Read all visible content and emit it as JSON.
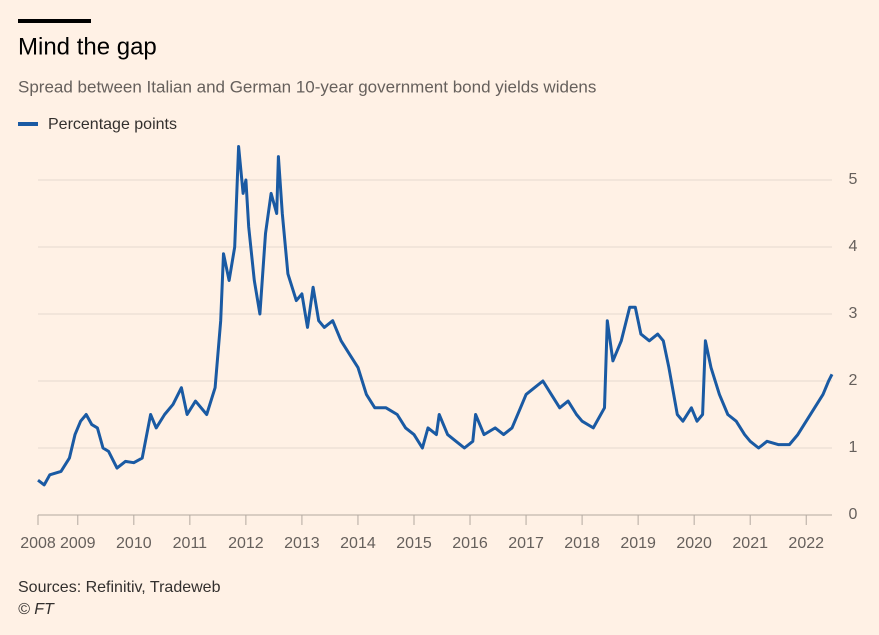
{
  "chart_data": {
    "type": "line",
    "title": "Mind the gap",
    "subtitle": "Spread between Italian and German 10-year government bond yields widens",
    "source": "Sources: Refinitiv, Tradeweb",
    "credit": "© FT",
    "x": [
      2008.29,
      2008.4,
      2008.5,
      2008.7,
      2008.85,
      2008.95,
      2009.05,
      2009.15,
      2009.25,
      2009.35,
      2009.45,
      2009.55,
      2009.7,
      2009.85,
      2010.0,
      2010.15,
      2010.3,
      2010.4,
      2010.55,
      2010.7,
      2010.85,
      2010.95,
      2011.1,
      2011.3,
      2011.45,
      2011.55,
      2011.6,
      2011.7,
      2011.8,
      2011.87,
      2011.95,
      2012.0,
      2012.05,
      2012.15,
      2012.25,
      2012.35,
      2012.45,
      2012.55,
      2012.58,
      2012.65,
      2012.75,
      2012.9,
      2013.0,
      2013.1,
      2013.2,
      2013.3,
      2013.4,
      2013.55,
      2013.7,
      2013.85,
      2014.0,
      2014.15,
      2014.3,
      2014.5,
      2014.7,
      2014.85,
      2015.0,
      2015.15,
      2015.25,
      2015.4,
      2015.45,
      2015.6,
      2015.75,
      2015.9,
      2016.05,
      2016.1,
      2016.25,
      2016.45,
      2016.6,
      2016.75,
      2016.9,
      2017.0,
      2017.15,
      2017.3,
      2017.45,
      2017.6,
      2017.75,
      2017.9,
      2018.0,
      2018.2,
      2018.4,
      2018.45,
      2018.55,
      2018.7,
      2018.85,
      2018.95,
      2019.05,
      2019.2,
      2019.35,
      2019.45,
      2019.55,
      2019.7,
      2019.8,
      2019.95,
      2020.05,
      2020.15,
      2020.2,
      2020.3,
      2020.45,
      2020.6,
      2020.75,
      2020.9,
      2021.0,
      2021.15,
      2021.3,
      2021.5,
      2021.7,
      2021.85,
      2022.0,
      2022.15,
      2022.3,
      2022.4,
      2022.46
    ],
    "series": [
      {
        "name": "Percentage points",
        "color": "#1a5aa3",
        "values": [
          0.52,
          0.45,
          0.6,
          0.65,
          0.85,
          1.2,
          1.4,
          1.5,
          1.35,
          1.3,
          1.0,
          0.95,
          0.7,
          0.8,
          0.78,
          0.85,
          1.5,
          1.3,
          1.5,
          1.65,
          1.9,
          1.5,
          1.7,
          1.5,
          1.9,
          2.9,
          3.9,
          3.5,
          4.0,
          5.5,
          4.8,
          5.0,
          4.3,
          3.5,
          3.0,
          4.2,
          4.8,
          4.5,
          5.35,
          4.5,
          3.6,
          3.2,
          3.3,
          2.8,
          3.4,
          2.9,
          2.8,
          2.9,
          2.6,
          2.4,
          2.2,
          1.8,
          1.6,
          1.6,
          1.5,
          1.3,
          1.2,
          1.0,
          1.3,
          1.2,
          1.5,
          1.2,
          1.1,
          1.0,
          1.1,
          1.5,
          1.2,
          1.3,
          1.2,
          1.3,
          1.6,
          1.8,
          1.9,
          2.0,
          1.8,
          1.6,
          1.7,
          1.5,
          1.4,
          1.3,
          1.6,
          2.9,
          2.3,
          2.6,
          3.1,
          3.1,
          2.7,
          2.6,
          2.7,
          2.6,
          2.2,
          1.5,
          1.4,
          1.6,
          1.4,
          1.5,
          2.6,
          2.2,
          1.8,
          1.5,
          1.4,
          1.2,
          1.1,
          1.0,
          1.1,
          1.05,
          1.05,
          1.2,
          1.4,
          1.6,
          1.8,
          2.0,
          2.1
        ]
      }
    ],
    "xlim": [
      2008.29,
      2022.46
    ],
    "xticks": [
      2008,
      2009,
      2010,
      2011,
      2012,
      2013,
      2014,
      2015,
      2016,
      2017,
      2018,
      2019,
      2020,
      2021,
      2022
    ],
    "ylim": [
      0,
      5.5
    ],
    "yticks": [
      0,
      1,
      2,
      3,
      4,
      5
    ],
    "grid": true
  }
}
